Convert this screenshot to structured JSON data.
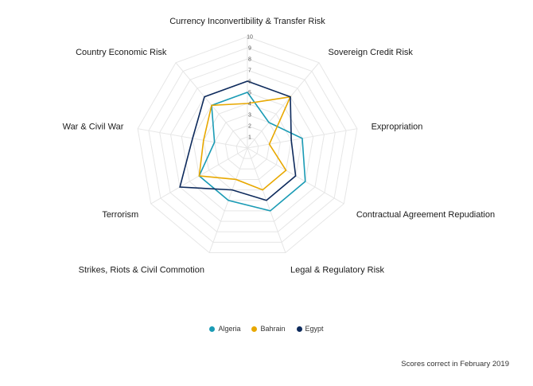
{
  "chart_data": {
    "type": "radar",
    "title": "",
    "axes": [
      "Currency Inconvertibility & Transfer Risk",
      "Sovereign Credit Risk",
      "Expropriation",
      "Contractual Agreement Repudiation",
      "Legal & Regulatory Risk",
      "Strikes, Riots & Civil Commotion",
      "Terrorism",
      "War & Civil War",
      "Country Economic Risk"
    ],
    "ticks": [
      1,
      2,
      3,
      4,
      5,
      6,
      7,
      8,
      9,
      10
    ],
    "rlim": [
      0,
      10
    ],
    "grid": true,
    "legend_position": "bottom",
    "series": [
      {
        "name": "Algeria",
        "color": "#1a9bb5",
        "values": [
          5,
          3,
          5,
          6,
          6,
          5,
          5,
          3,
          5
        ]
      },
      {
        "name": "Bahrain",
        "color": "#e8a800",
        "values": [
          4,
          6,
          2,
          4,
          4,
          3,
          5,
          4,
          5
        ]
      },
      {
        "name": "Egypt",
        "color": "#0d2a5c",
        "values": [
          6,
          6,
          4,
          5,
          5,
          4,
          7,
          5,
          6
        ]
      }
    ]
  },
  "footnote": "Scores correct in February 2019"
}
